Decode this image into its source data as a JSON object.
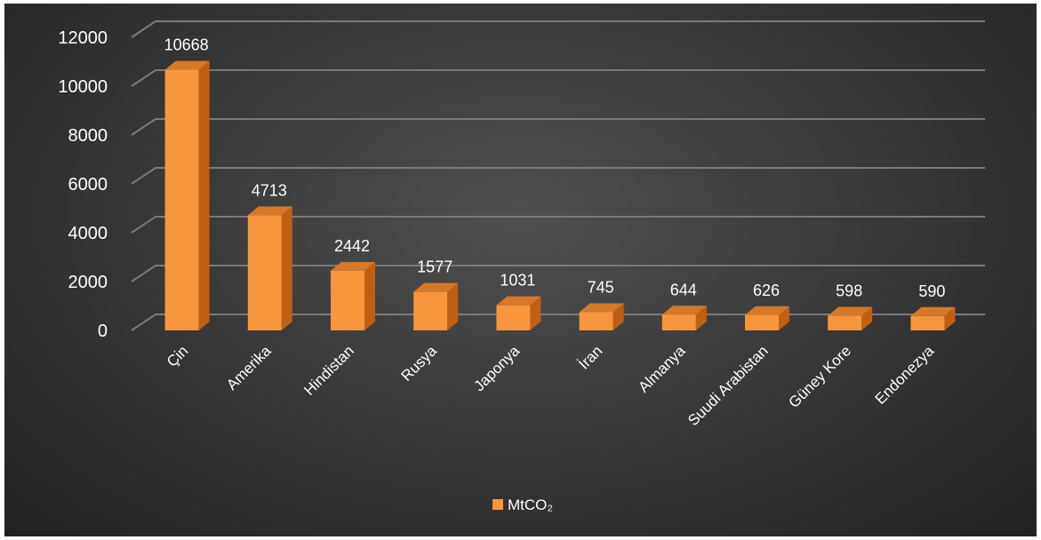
{
  "chart_data": {
    "type": "bar",
    "categories": [
      "Çin",
      "Amerika",
      "Hindistan",
      "Rusya",
      "Japonya",
      "İran",
      "Almanya",
      "Suudi Arabistan",
      "Güney Kore",
      "Endonezya"
    ],
    "series": [
      {
        "name": "MtCO₂",
        "values": [
          10668,
          4713,
          2442,
          1577,
          1031,
          745,
          644,
          626,
          598,
          590
        ]
      }
    ],
    "y_ticks": [
      "0",
      "2000",
      "4000",
      "6000",
      "8000",
      "10000",
      "12000"
    ],
    "ylim": [
      0,
      12000
    ],
    "grid": true,
    "legend": "bottom",
    "colors": {
      "bar_front": "#f7963c",
      "bar_side": "#c05f14",
      "bar_top": "#d4782a",
      "gridline": "#7a7a7a",
      "background": "#2e2e2e"
    }
  }
}
